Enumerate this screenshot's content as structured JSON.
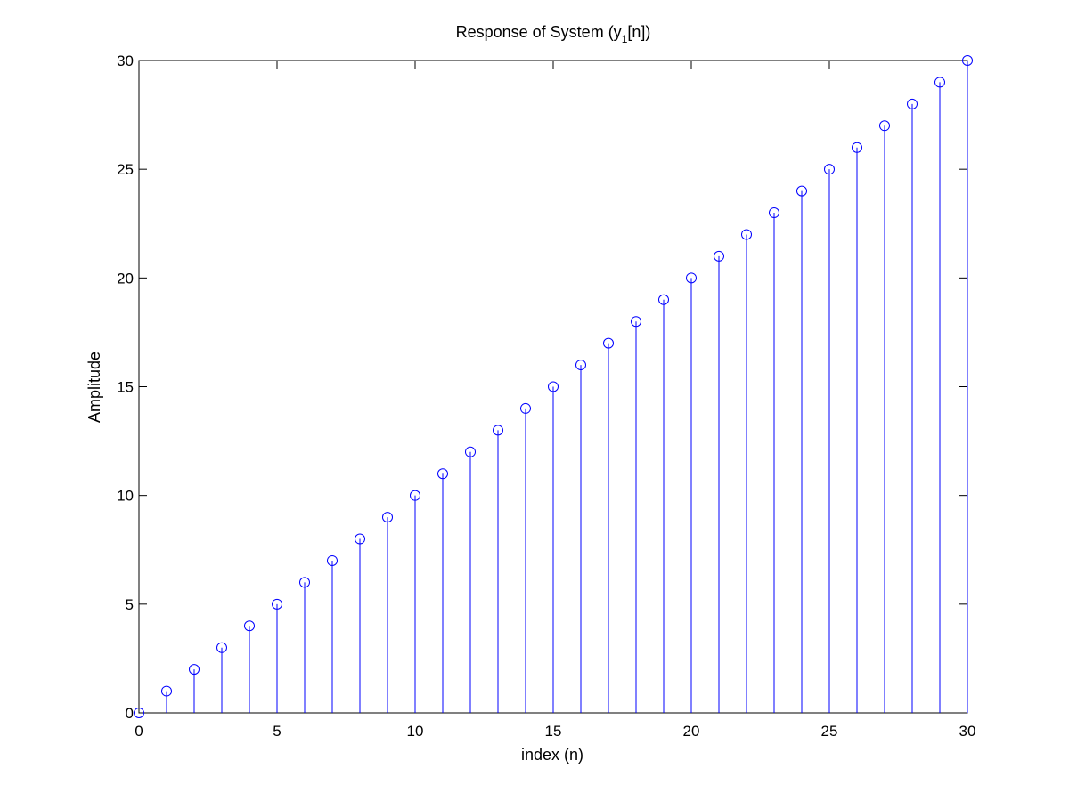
{
  "chart_data": {
    "type": "stem",
    "title": "Response of System (y",
    "title_subscript": "1",
    "title_suffix": "[n])",
    "xlabel": "index (n)",
    "ylabel": "Amplitude",
    "xlim": [
      0,
      30
    ],
    "ylim": [
      0,
      30
    ],
    "xticks": [
      0,
      5,
      10,
      15,
      20,
      25,
      30
    ],
    "yticks": [
      0,
      5,
      10,
      15,
      20,
      25,
      30
    ],
    "grid": false,
    "x": [
      0,
      1,
      2,
      3,
      4,
      5,
      6,
      7,
      8,
      9,
      10,
      11,
      12,
      13,
      14,
      15,
      16,
      17,
      18,
      19,
      20,
      21,
      22,
      23,
      24,
      25,
      26,
      27,
      28,
      29,
      30
    ],
    "y": [
      0,
      1,
      2,
      3,
      4,
      5,
      6,
      7,
      8,
      9,
      10,
      11,
      12,
      13,
      14,
      15,
      16,
      17,
      18,
      19,
      20,
      21,
      22,
      23,
      24,
      25,
      26,
      27,
      28,
      29,
      30
    ],
    "colors": {
      "series": "#0000ff",
      "axes": "#000000",
      "background": "#ffffff"
    }
  }
}
